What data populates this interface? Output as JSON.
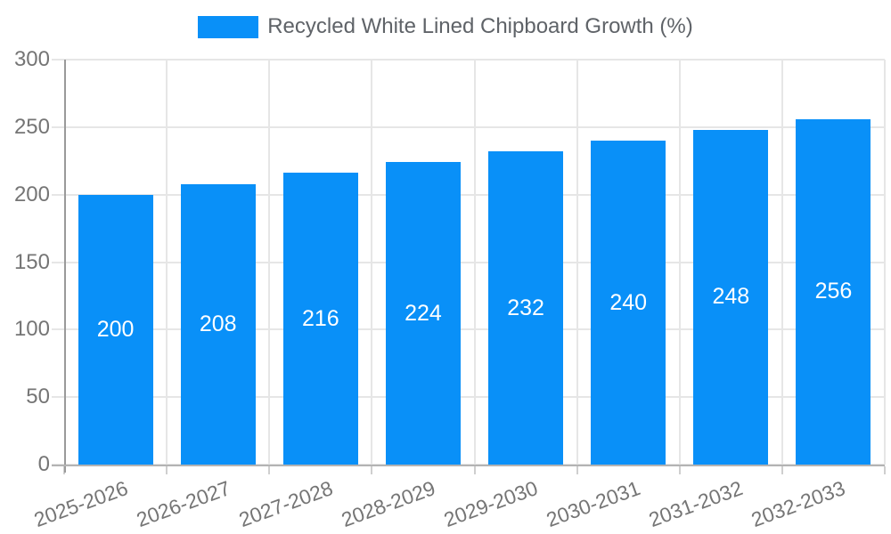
{
  "chart_data": {
    "type": "bar",
    "title": "Recycled White Lined Chipboard Growth (%)",
    "categories": [
      "2025-2026",
      "2026-2027",
      "2027-2028",
      "2028-2029",
      "2029-2030",
      "2030-2031",
      "2031-2032",
      "2032-2033"
    ],
    "values": [
      200,
      208,
      216,
      224,
      232,
      240,
      248,
      256
    ],
    "xlabel": "",
    "ylabel": "",
    "ylim": [
      0,
      300
    ],
    "yticks": [
      0,
      50,
      100,
      150,
      200,
      250,
      300
    ],
    "grid": true,
    "legend_position": "top-center",
    "colors": {
      "bar": "#0990f8",
      "value_label": "#ffffff",
      "axis_text": "#757575",
      "legend_text": "#5f6368",
      "gridline": "#e6e6e6",
      "y_axis_line": "#9a9a9a",
      "x_axis_line": "#b3b3b3"
    }
  }
}
